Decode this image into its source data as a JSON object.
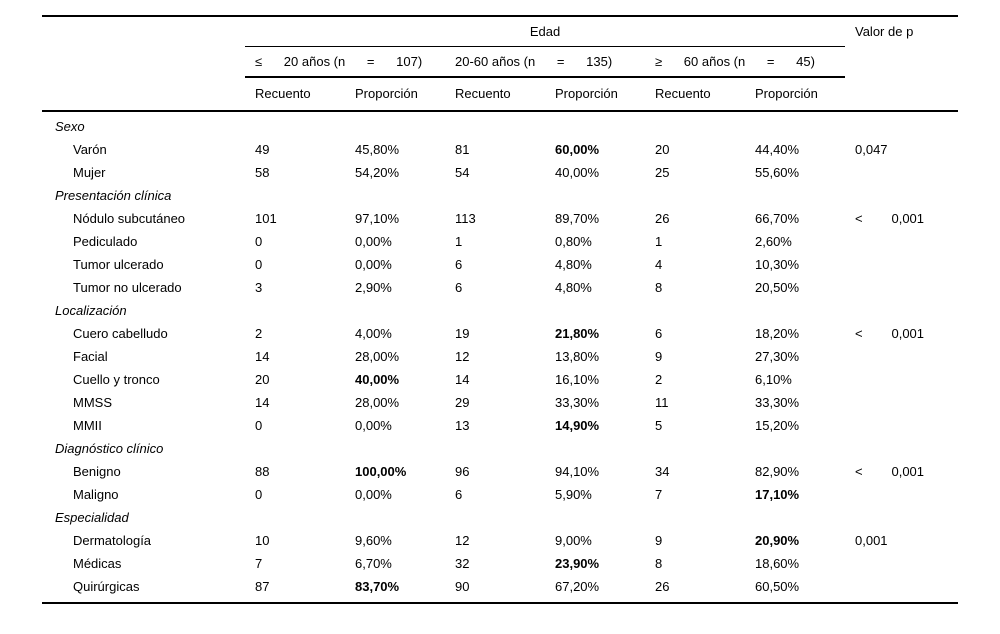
{
  "table": {
    "header": {
      "edad_label": "Edad",
      "p_label": "Valor de p",
      "age_groups": [
        "≤      20 años (n      =      107)",
        "20-60 años (n      =      135)",
        "≥      60 años (n      =      45)"
      ],
      "stat_columns": [
        "Recuento",
        "Proporción",
        "Recuento",
        "Proporción",
        "Recuento",
        "Proporción"
      ]
    },
    "sections": [
      {
        "title": "Sexo",
        "rows": [
          {
            "label": "Varón",
            "cells": [
              "49",
              "45,80%",
              "81",
              "60,00%",
              "20",
              "44,40%"
            ],
            "bold": [
              3
            ],
            "p": "0,047"
          },
          {
            "label": "Mujer",
            "cells": [
              "58",
              "54,20%",
              "54",
              "40,00%",
              "25",
              "55,60%"
            ],
            "bold": [],
            "p": ""
          }
        ]
      },
      {
        "title": "Presentación clínica",
        "rows": [
          {
            "label": "Nódulo subcutáneo",
            "cells": [
              "101",
              "97,10%",
              "113",
              "89,70%",
              "26",
              "66,70%"
            ],
            "bold": [],
            "p": "<        0,001"
          },
          {
            "label": "Pediculado",
            "cells": [
              "0",
              "0,00%",
              "1",
              "0,80%",
              "1",
              "2,60%"
            ],
            "bold": [],
            "p": ""
          },
          {
            "label": "Tumor ulcerado",
            "cells": [
              "0",
              "0,00%",
              "6",
              "4,80%",
              "4",
              "10,30%"
            ],
            "bold": [],
            "p": ""
          },
          {
            "label": "Tumor no ulcerado",
            "cells": [
              "3",
              "2,90%",
              "6",
              "4,80%",
              "8",
              "20,50%"
            ],
            "bold": [],
            "p": ""
          }
        ]
      },
      {
        "title": "Localización",
        "rows": [
          {
            "label": "Cuero cabelludo",
            "cells": [
              "2",
              "4,00%",
              "19",
              "21,80%",
              "6",
              "18,20%"
            ],
            "bold": [
              3
            ],
            "p": "<        0,001"
          },
          {
            "label": "Facial",
            "cells": [
              "14",
              "28,00%",
              "12",
              "13,80%",
              "9",
              "27,30%"
            ],
            "bold": [],
            "p": ""
          },
          {
            "label": "Cuello y tronco",
            "cells": [
              "20",
              "40,00%",
              "14",
              "16,10%",
              "2",
              "6,10%"
            ],
            "bold": [
              1
            ],
            "p": ""
          },
          {
            "label": "MMSS",
            "cells": [
              "14",
              "28,00%",
              "29",
              "33,30%",
              "11",
              "33,30%"
            ],
            "bold": [],
            "p": ""
          },
          {
            "label": "MMII",
            "cells": [
              "0",
              "0,00%",
              "13",
              "14,90%",
              "5",
              "15,20%"
            ],
            "bold": [
              3
            ],
            "p": ""
          }
        ]
      },
      {
        "title": "Diagnóstico clínico",
        "rows": [
          {
            "label": "Benigno",
            "cells": [
              "88",
              "100,00%",
              "96",
              "94,10%",
              "34",
              "82,90%"
            ],
            "bold": [
              1
            ],
            "p": "<        0,001"
          },
          {
            "label": "Maligno",
            "cells": [
              "0",
              "0,00%",
              "6",
              "5,90%",
              "7",
              "17,10%"
            ],
            "bold": [
              5
            ],
            "p": ""
          }
        ]
      },
      {
        "title": "Especialidad",
        "rows": [
          {
            "label": "Dermatología",
            "cells": [
              "10",
              "9,60%",
              "12",
              "9,00%",
              "9",
              "20,90%"
            ],
            "bold": [
              5
            ],
            "p": "0,001"
          },
          {
            "label": "Médicas",
            "cells": [
              "7",
              "6,70%",
              "32",
              "23,90%",
              "8",
              "18,60%"
            ],
            "bold": [
              3
            ],
            "p": ""
          },
          {
            "label": "Quirúrgicas",
            "cells": [
              "87",
              "83,70%",
              "90",
              "67,20%",
              "26",
              "60,50%"
            ],
            "bold": [
              1
            ],
            "p": ""
          }
        ]
      }
    ]
  }
}
